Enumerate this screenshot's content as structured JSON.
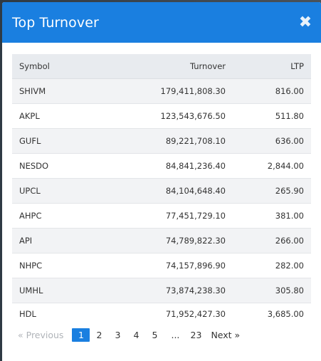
{
  "modal": {
    "title": "Top Turnover",
    "close_glyph": "✖"
  },
  "table": {
    "headers": {
      "symbol": "Symbol",
      "turnover": "Turnover",
      "ltp": "LTP"
    },
    "rows": [
      {
        "symbol": "SHIVM",
        "turnover": "179,411,808.30",
        "ltp": "816.00"
      },
      {
        "symbol": "AKPL",
        "turnover": "123,543,676.50",
        "ltp": "511.80"
      },
      {
        "symbol": "GUFL",
        "turnover": "89,221,708.10",
        "ltp": "636.00"
      },
      {
        "symbol": "NESDO",
        "turnover": "84,841,236.40",
        "ltp": "2,844.00"
      },
      {
        "symbol": "UPCL",
        "turnover": "84,104,648.40",
        "ltp": "265.90"
      },
      {
        "symbol": "AHPC",
        "turnover": "77,451,729.10",
        "ltp": "381.00"
      },
      {
        "symbol": "API",
        "turnover": "74,789,822.30",
        "ltp": "266.00"
      },
      {
        "symbol": "NHPC",
        "turnover": "74,157,896.90",
        "ltp": "282.00"
      },
      {
        "symbol": "UMHL",
        "turnover": "73,874,238.30",
        "ltp": "305.80"
      },
      {
        "symbol": "HDL",
        "turnover": "71,952,427.30",
        "ltp": "3,685.00"
      }
    ]
  },
  "pagination": {
    "prev_label": "«  Previous",
    "pages": [
      "1",
      "2",
      "3",
      "4",
      "5"
    ],
    "ellipsis": "...",
    "last_page": "23",
    "next_label": "Next  »",
    "active_page": "1"
  },
  "colors": {
    "header_blue": "#1a7fe0",
    "table_header_bg": "#e8ebef",
    "stripe": "#f2f3f5"
  }
}
